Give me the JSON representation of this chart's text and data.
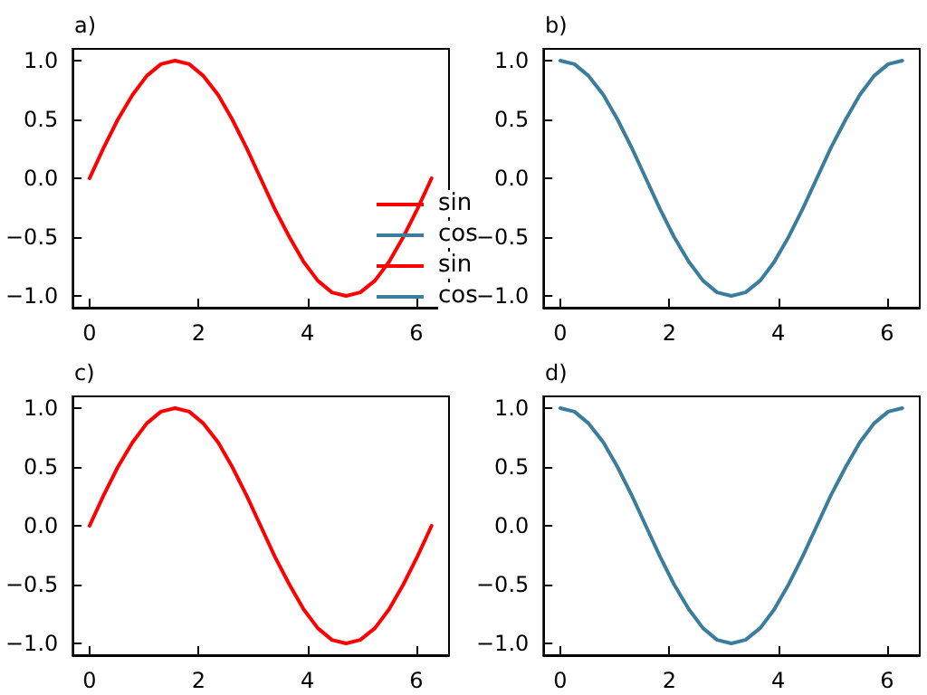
{
  "chart_data": [
    {
      "type": "line",
      "title": "a)",
      "x": [
        0,
        0.26,
        0.52,
        0.79,
        1.05,
        1.31,
        1.57,
        1.83,
        2.09,
        2.36,
        2.62,
        2.88,
        3.14,
        3.4,
        3.67,
        3.93,
        4.19,
        4.45,
        4.71,
        4.97,
        5.24,
        5.5,
        5.76,
        6.02,
        6.28
      ],
      "series": [
        {
          "name": "sin",
          "color": "#ff0000",
          "values": [
            0,
            0.26,
            0.5,
            0.71,
            0.87,
            0.97,
            1,
            0.97,
            0.87,
            0.71,
            0.5,
            0.26,
            0,
            -0.26,
            -0.5,
            -0.71,
            -0.87,
            -0.97,
            -1,
            -0.97,
            -0.87,
            -0.71,
            -0.5,
            -0.26,
            0
          ]
        }
      ],
      "xlim": [
        -0.31,
        6.6
      ],
      "ylim": [
        -1.1,
        1.1
      ],
      "xticks": [
        0,
        2,
        4,
        6
      ],
      "yticks": [
        {
          "value": -1,
          "label": "−1.0"
        },
        {
          "value": -0.5,
          "label": "−0.5"
        },
        {
          "value": 0,
          "label": "0.0"
        },
        {
          "value": 0.5,
          "label": "0.5"
        },
        {
          "value": 1,
          "label": "1.0"
        }
      ],
      "grid": false,
      "legend": "right",
      "marker": "none",
      "line_style": "solid"
    },
    {
      "type": "line",
      "title": "b)",
      "x": [
        0,
        0.26,
        0.52,
        0.79,
        1.05,
        1.31,
        1.57,
        1.83,
        2.09,
        2.36,
        2.62,
        2.88,
        3.14,
        3.4,
        3.67,
        3.93,
        4.19,
        4.45,
        4.71,
        4.97,
        5.24,
        5.5,
        5.76,
        6.02,
        6.28
      ],
      "series": [
        {
          "name": "cos",
          "color": "#3a7d9c",
          "values": [
            1,
            0.97,
            0.87,
            0.71,
            0.5,
            0.26,
            0,
            -0.26,
            -0.5,
            -0.71,
            -0.87,
            -0.97,
            -1,
            -0.97,
            -0.87,
            -0.71,
            -0.5,
            -0.26,
            0,
            0.26,
            0.5,
            0.71,
            0.87,
            0.97,
            1
          ]
        }
      ],
      "xlim": [
        -0.31,
        6.6
      ],
      "ylim": [
        -1.1,
        1.1
      ],
      "xticks": [
        0,
        2,
        4,
        6
      ],
      "yticks": [
        {
          "value": -1,
          "label": "−1.0"
        },
        {
          "value": -0.5,
          "label": "−0.5"
        },
        {
          "value": 0,
          "label": "0.0"
        },
        {
          "value": 0.5,
          "label": "0.5"
        },
        {
          "value": 1,
          "label": "1.0"
        }
      ],
      "grid": false,
      "legend": "left",
      "marker": "none",
      "line_style": "solid"
    },
    {
      "type": "line",
      "title": "c)",
      "x": [
        0,
        0.26,
        0.52,
        0.79,
        1.05,
        1.31,
        1.57,
        1.83,
        2.09,
        2.36,
        2.62,
        2.88,
        3.14,
        3.4,
        3.67,
        3.93,
        4.19,
        4.45,
        4.71,
        4.97,
        5.24,
        5.5,
        5.76,
        6.02,
        6.28
      ],
      "series": [
        {
          "name": "sin",
          "color": "#ff0000",
          "values": [
            0,
            0.26,
            0.5,
            0.71,
            0.87,
            0.97,
            1,
            0.97,
            0.87,
            0.71,
            0.5,
            0.26,
            0,
            -0.26,
            -0.5,
            -0.71,
            -0.87,
            -0.97,
            -1,
            -0.97,
            -0.87,
            -0.71,
            -0.5,
            -0.26,
            0
          ]
        }
      ],
      "xlim": [
        -0.31,
        6.6
      ],
      "ylim": [
        -1.1,
        1.1
      ],
      "xticks": [
        0,
        2,
        4,
        6
      ],
      "yticks": [
        {
          "value": -1,
          "label": "−1.0"
        },
        {
          "value": -0.5,
          "label": "−0.5"
        },
        {
          "value": 0,
          "label": "0.0"
        },
        {
          "value": 0.5,
          "label": "0.5"
        },
        {
          "value": 1,
          "label": "1.0"
        }
      ],
      "grid": false,
      "legend": "top right",
      "marker": "none",
      "line_style": "solid"
    },
    {
      "type": "line",
      "title": "d)",
      "x": [
        0,
        0.26,
        0.52,
        0.79,
        1.05,
        1.31,
        1.57,
        1.83,
        2.09,
        2.36,
        2.62,
        2.88,
        3.14,
        3.4,
        3.67,
        3.93,
        4.19,
        4.45,
        4.71,
        4.97,
        5.24,
        5.5,
        5.76,
        6.02,
        6.28
      ],
      "series": [
        {
          "name": "cos",
          "color": "#3a7d9c",
          "values": [
            1,
            0.97,
            0.87,
            0.71,
            0.5,
            0.26,
            0,
            -0.26,
            -0.5,
            -0.71,
            -0.87,
            -0.97,
            -1,
            -0.97,
            -0.87,
            -0.71,
            -0.5,
            -0.26,
            0,
            0.26,
            0.5,
            0.71,
            0.87,
            0.97,
            1
          ]
        }
      ],
      "xlim": [
        -0.31,
        6.6
      ],
      "ylim": [
        -1.1,
        1.1
      ],
      "xticks": [
        0,
        2,
        4,
        6
      ],
      "yticks": [
        {
          "value": -1,
          "label": "−1.0"
        },
        {
          "value": -0.5,
          "label": "−0.5"
        },
        {
          "value": 0,
          "label": "0.0"
        },
        {
          "value": 0.5,
          "label": "0.5"
        },
        {
          "value": 1,
          "label": "1.0"
        }
      ],
      "grid": false,
      "legend": "top left",
      "marker": "none",
      "line_style": "solid"
    }
  ]
}
